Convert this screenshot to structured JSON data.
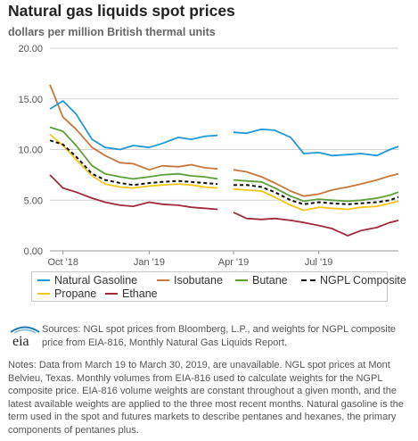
{
  "title": "Natural gas liquids spot prices",
  "subtitle": "dollars per million British thermal units",
  "logo_text": "eia",
  "sources": "Sources: NGL spot prices from Bloomberg, L.P., and weights for NGPL composite price from EIA-816, Monthly Natural Gas Liquids Report.",
  "notes": "Notes: Data from March 19 to March 30, 2019, are unavailable. NGL spot prices at Mont Belvieu, Texas. Monthly volumes from EIA-816 used to calculate weights for the NGPL composite price. EIA-816 volume weights are constant throughout a given month, and the latest available weights are applied to the three most recent months. Natural gasoline is the term used in the spot and futures markets to describe pentanes and hexanes, the primary components of pentanes plus.",
  "chart_data": {
    "type": "line",
    "title": "Natural gas liquids spot prices",
    "ylabel": "dollars per million British thermal units",
    "ylim": [
      0,
      20
    ],
    "yticks": [
      "0.00",
      "5.00",
      "10.00",
      "15.00",
      "20.00"
    ],
    "xlim": [
      "2018-09-17",
      "2019-09-24"
    ],
    "xticks": [
      {
        "label": "Oct '18",
        "date": "2018-10-01"
      },
      {
        "label": "Jan '19",
        "date": "2019-01-01"
      },
      {
        "label": "Apr '19",
        "date": "2019-04-01"
      },
      {
        "label": "Jul '19",
        "date": "2019-07-01"
      }
    ],
    "gap": [
      "2019-03-19",
      "2019-03-30"
    ],
    "grid": "horizontal",
    "legend_position": "bottom",
    "x": [
      "2018-09-17",
      "2018-10-01",
      "2018-10-15",
      "2018-11-01",
      "2018-11-15",
      "2018-12-01",
      "2018-12-15",
      "2019-01-01",
      "2019-01-15",
      "2019-02-01",
      "2019-02-15",
      "2019-03-01",
      "2019-03-15",
      "2019-04-01",
      "2019-04-15",
      "2019-05-01",
      "2019-05-15",
      "2019-06-01",
      "2019-06-15",
      "2019-07-01",
      "2019-07-15",
      "2019-08-01",
      "2019-08-15",
      "2019-09-01",
      "2019-09-15",
      "2019-09-24"
    ],
    "series": [
      {
        "name": "Natural Gasoline",
        "color": "#1f9ad6",
        "dash": false,
        "values": [
          14.0,
          14.8,
          13.5,
          11.0,
          10.2,
          10.0,
          10.4,
          10.2,
          10.6,
          11.2,
          11.0,
          11.3,
          11.4,
          11.7,
          11.6,
          12.0,
          11.9,
          11.2,
          9.6,
          9.7,
          9.4,
          9.5,
          9.6,
          9.4,
          10.0,
          10.3
        ]
      },
      {
        "name": "Isobutane",
        "color": "#c8773a",
        "dash": false,
        "values": [
          16.4,
          13.2,
          12.0,
          10.2,
          9.4,
          8.7,
          8.6,
          8.0,
          8.4,
          8.3,
          8.5,
          8.2,
          8.1,
          8.0,
          7.8,
          7.3,
          6.7,
          5.9,
          5.4,
          5.6,
          6.0,
          6.3,
          6.6,
          7.0,
          7.4,
          7.6
        ]
      },
      {
        "name": "Butane",
        "color": "#5f9f3a",
        "dash": false,
        "values": [
          12.2,
          11.8,
          10.4,
          8.4,
          7.6,
          7.3,
          7.1,
          7.3,
          7.5,
          7.6,
          7.4,
          7.3,
          7.1,
          7.0,
          6.9,
          6.8,
          6.2,
          5.4,
          4.9,
          5.1,
          5.0,
          4.9,
          5.0,
          5.2,
          5.5,
          5.8
        ]
      },
      {
        "name": "NGPL Composite",
        "color": "#111111",
        "dash": true,
        "values": [
          10.9,
          10.5,
          9.3,
          7.6,
          7.0,
          6.7,
          6.5,
          6.7,
          6.8,
          6.9,
          6.8,
          6.7,
          6.6,
          6.5,
          6.5,
          6.3,
          5.8,
          5.0,
          4.6,
          4.8,
          4.7,
          4.6,
          4.7,
          4.8,
          5.0,
          5.3
        ]
      },
      {
        "name": "Propane",
        "color": "#f5c518",
        "dash": false,
        "values": [
          11.5,
          10.4,
          9.0,
          7.4,
          6.6,
          6.3,
          6.2,
          6.4,
          6.5,
          6.6,
          6.5,
          6.3,
          6.2,
          6.1,
          6.0,
          5.9,
          5.3,
          4.5,
          4.0,
          4.3,
          4.2,
          4.1,
          4.3,
          4.4,
          4.7,
          4.9
        ]
      },
      {
        "name": "Ethane",
        "color": "#a12a3c",
        "dash": false,
        "values": [
          7.5,
          6.2,
          5.8,
          5.2,
          4.8,
          4.5,
          4.4,
          4.8,
          4.6,
          4.5,
          4.3,
          4.2,
          4.1,
          3.8,
          3.2,
          3.1,
          3.2,
          3.0,
          2.8,
          2.5,
          2.2,
          1.5,
          2.0,
          2.3,
          2.8,
          3.0
        ]
      }
    ]
  }
}
